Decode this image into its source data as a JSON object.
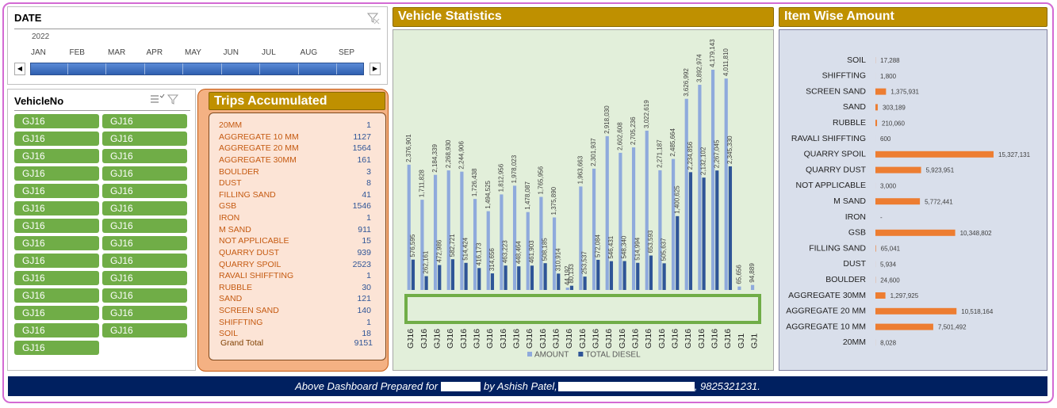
{
  "date_slicer": {
    "title": "DATE",
    "year": "2022",
    "months": [
      "JAN",
      "FEB",
      "MAR",
      "APR",
      "MAY",
      "JUN",
      "JUL",
      "AUG",
      "SEP"
    ]
  },
  "vehicle_slicer": {
    "title": "VehicleNo",
    "items": [
      "GJ16",
      "GJ16",
      "GJ16",
      "GJ16",
      "GJ16",
      "GJ16",
      "GJ16",
      "GJ16",
      "GJ16",
      "GJ16",
      "GJ16",
      "GJ16",
      "GJ16",
      "GJ16",
      "GJ16",
      "GJ16",
      "GJ16",
      "GJ16",
      "GJ16",
      "GJ16",
      "GJ16",
      "GJ16",
      "GJ16",
      "GJ16",
      "GJ16",
      "GJ16",
      "GJ16"
    ]
  },
  "trips": {
    "title": "Trips Accumulated",
    "rows": [
      {
        "name": "20MM",
        "value": 1
      },
      {
        "name": "AGGREGATE 10 MM",
        "value": 1127
      },
      {
        "name": "AGGREGATE 20 MM",
        "value": 1564
      },
      {
        "name": "AGGREGATE 30MM",
        "value": 161
      },
      {
        "name": "BOULDER",
        "value": 3
      },
      {
        "name": "DUST",
        "value": 8
      },
      {
        "name": "FILLING SAND",
        "value": 41
      },
      {
        "name": "GSB",
        "value": 1546
      },
      {
        "name": "IRON",
        "value": 1
      },
      {
        "name": "M SAND",
        "value": 911
      },
      {
        "name": "NOT APPLICABLE",
        "value": 15
      },
      {
        "name": "QUARRY DUST",
        "value": 939
      },
      {
        "name": "QUARRY SPOIL",
        "value": 2523
      },
      {
        "name": "RAVALI  SHIFFTING",
        "value": 1
      },
      {
        "name": "RUBBLE",
        "value": 30
      },
      {
        "name": "SAND",
        "value": 121
      },
      {
        "name": "SCREEN SAND",
        "value": 140
      },
      {
        "name": "SHIFFTING",
        "value": 1
      },
      {
        "name": "SOIL",
        "value": 18
      }
    ],
    "total": {
      "name": "Grand Total",
      "value": 9151
    }
  },
  "chart_data": [
    {
      "type": "bar",
      "title": "Vehicle Statistics",
      "categories": [
        "GJ16",
        "GJ16",
        "GJ16",
        "GJ16",
        "GJ16",
        "GJ16",
        "GJ16",
        "GJ16",
        "GJ16",
        "GJ16",
        "GJ16",
        "GJ16",
        "GJ16",
        "GJ16",
        "GJ16",
        "GJ16",
        "GJ16",
        "GJ16",
        "GJ16",
        "GJ16",
        "GJ16",
        "GJ16",
        "GJ16",
        "GJ16",
        "GJ16",
        "GJ1",
        "GJ1"
      ],
      "series": [
        {
          "name": "AMOUNT",
          "color": "#8faadc",
          "values": [
            2376901,
            1711828,
            2184339,
            2268930,
            2244906,
            1726438,
            1494525,
            1812956,
            1978023,
            1478087,
            1765956,
            1375890,
            44192,
            1963663,
            2301937,
            2918030,
            2602608,
            2705236,
            3022619,
            2271187,
            2485664,
            3626992,
            3892974,
            4179143,
            4011810,
            65656,
            94889
          ],
          "value_labels": [
            "2,376,901",
            "1,711,828",
            "2,184,339",
            "2,268,930",
            "2,244,906",
            "1,726,438",
            "1,494,525",
            "1,812,956",
            "1,978,023",
            "1,478,087",
            "1,765,956",
            "1,375,890",
            "44,192",
            "1,963,663",
            "2,301,937",
            "2,918,030",
            "2,602,608",
            "2,705,236",
            "3,022,619",
            "2,271,187",
            "2,485,664",
            "3,626,992",
            "3,892,974",
            "4,179,143",
            "4,011,810",
            "65,656",
            "94,889"
          ]
        },
        {
          "name": "TOTAL DIESEL",
          "color": "#2f5597",
          "values": [
            576595,
            262161,
            472986,
            582721,
            514424,
            416173,
            314656,
            463223,
            448464,
            461903,
            508185,
            310914,
            80133,
            253537,
            572084,
            546431,
            548340,
            514994,
            653593,
            505637,
            1400625,
            2234856,
            2132102,
            2267045,
            2345330,
            null,
            null
          ],
          "value_labels": [
            "576,595",
            "262,161",
            "472,986",
            "582,721",
            "514,424",
            "416,173",
            "314,656",
            "463,223",
            "448,464",
            "461,903",
            "508,185",
            "310,914",
            "80,133",
            "253,537",
            "572,084",
            "546,431",
            "548,340",
            "514,994",
            "653,593",
            "505,637",
            "1,400,625",
            "2,234,856",
            "2,132,102",
            "2,267,045",
            "2,345,330",
            null,
            null
          ]
        }
      ],
      "legend": "bottom"
    },
    {
      "type": "hbar",
      "title": "Item Wise Amount",
      "color": "#ed7d31",
      "categories": [
        "SOIL",
        "SHIFFTING",
        "SCREEN SAND",
        "SAND",
        "RUBBLE",
        "RAVALI  SHIFFTING",
        "QUARRY SPOIL",
        "QUARRY DUST",
        "NOT APPLICABLE",
        "M SAND",
        "IRON",
        "GSB",
        "FILLING SAND",
        "DUST",
        "BOULDER",
        "AGGREGATE 30MM",
        "AGGREGATE 20 MM",
        "AGGREGATE 10 MM",
        "20MM"
      ],
      "values": [
        17288,
        1800,
        1375931,
        303189,
        210060,
        600,
        15327131,
        5923951,
        3000,
        5772441,
        0,
        10348802,
        65041,
        5934,
        24600,
        1297925,
        10518164,
        7501492,
        8028
      ],
      "value_labels": [
        "17,288",
        "1,800",
        "1,375,931",
        "303,189",
        "210,060",
        "600",
        "15,327,131",
        "5,923,951",
        "3,000",
        "5,772,441",
        "-",
        "10,348,802",
        "65,041",
        "5,934",
        "24,600",
        "1,297,925",
        "10,518,164",
        "7,501,492",
        "8,028"
      ]
    }
  ],
  "footer": {
    "before": "Above Dashboard Prepared for",
    "middle": "by Ashish Patel,",
    "after": ", 9825321231."
  }
}
